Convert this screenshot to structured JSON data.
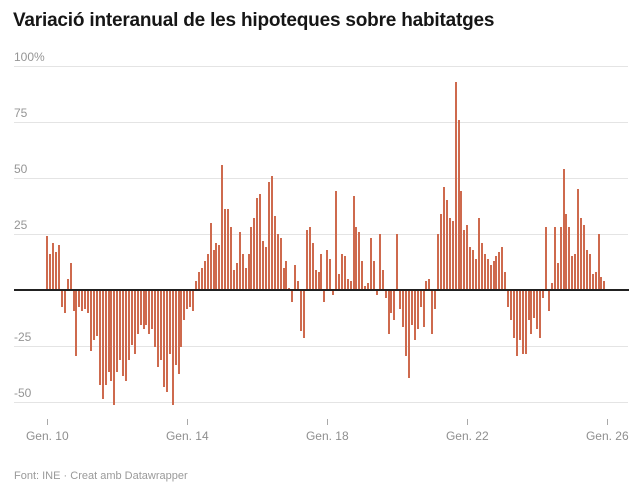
{
  "header": {
    "title": "Variació interanual de les hipoteques sobre habitatges"
  },
  "footer": {
    "source": "Font: INE",
    "separator": "·",
    "attribution": "Creat amb Datawrapper"
  },
  "colors": {
    "bar": "#ce6a4e",
    "zero_line": "#212121",
    "gridline": "#e4e4e4",
    "axis_text": "#929292",
    "title_text": "#161616",
    "footer_text": "#9a9a9a",
    "background": "#ffffff"
  },
  "chart_data": {
    "type": "bar",
    "title": "Variació interanual de les hipoteques sobre habitatges",
    "unit": "%",
    "frequency": "monthly",
    "start_month": "2010-01",
    "end_month": "2025-12",
    "values": [
      24,
      16,
      21,
      17,
      20,
      -7,
      -10,
      5,
      12,
      -9,
      -29,
      -7,
      -9,
      -8,
      -10,
      -27,
      -22,
      -20,
      -42,
      -48,
      -42,
      -36,
      -40,
      -51,
      -36,
      -31,
      -38,
      -40,
      -31,
      -24,
      -28,
      -19,
      -15,
      -17,
      -15,
      -19,
      -17,
      -25,
      -34,
      -31,
      -43,
      -45,
      -28,
      -51,
      -33,
      -37,
      -25,
      -13,
      -8,
      -7,
      -9,
      4,
      8,
      10,
      13,
      16,
      30,
      18,
      21,
      20,
      56,
      36,
      36,
      28,
      9,
      12,
      26,
      16,
      10,
      16,
      28,
      32,
      41,
      43,
      22,
      19,
      48,
      51,
      33,
      25,
      23,
      10,
      13,
      1,
      -5,
      11,
      4,
      -18,
      -21,
      27,
      28,
      21,
      9,
      8,
      16,
      -5,
      18,
      14,
      -2,
      44,
      7,
      16,
      15,
      5,
      4,
      42,
      28,
      26,
      13,
      2,
      3,
      23,
      13,
      -2,
      25,
      9,
      -3,
      -19,
      -10,
      -13,
      25,
      -8,
      -16,
      -29,
      -39,
      -15,
      -22,
      -17,
      -7,
      -16,
      4,
      5,
      -19,
      -8,
      25,
      34,
      46,
      40,
      32,
      31,
      93,
      76,
      44,
      27,
      29,
      19,
      18,
      14,
      32,
      21,
      16,
      14,
      11,
      13,
      15,
      17,
      19,
      8,
      -7,
      -13,
      -21,
      -29,
      -22,
      -28,
      -28,
      -13,
      -19,
      -12,
      -17,
      -21,
      -3,
      28,
      -9,
      3,
      28,
      12,
      28,
      54,
      34,
      28,
      15,
      16,
      45,
      32,
      29,
      18,
      16,
      7,
      8,
      25,
      6,
      4
    ],
    "y_axis": {
      "ylim": [
        -58,
        104
      ],
      "gridline_values": [
        100,
        75,
        50,
        25,
        0,
        -25,
        -50
      ],
      "tick_labels": [
        {
          "value": 100,
          "label": "100%"
        },
        {
          "value": 75,
          "label": "75"
        },
        {
          "value": 50,
          "label": "50"
        },
        {
          "value": 25,
          "label": "25"
        },
        {
          "value": -25,
          "label": "-25"
        },
        {
          "value": -50,
          "label": "-50"
        }
      ],
      "grid": true
    },
    "x_axis": {
      "tick_labels": [
        {
          "month_index": 0,
          "label": "Gen. 10"
        },
        {
          "month_index": 48,
          "label": "Gen. 14"
        },
        {
          "month_index": 96,
          "label": "Gen. 18"
        },
        {
          "month_index": 144,
          "label": "Gen. 22"
        },
        {
          "month_index": 192,
          "label": "Gen. 26"
        }
      ]
    },
    "legend": "none"
  }
}
